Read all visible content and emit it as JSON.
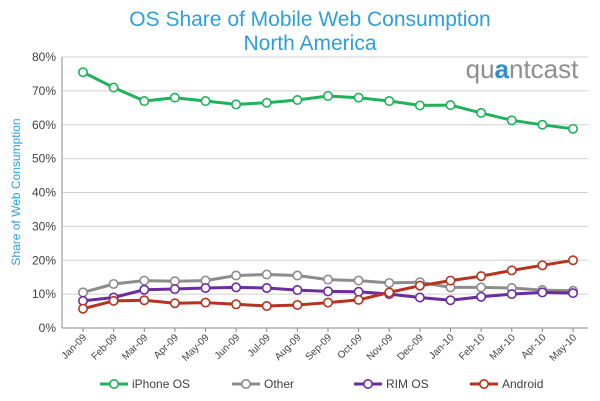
{
  "chart_data": {
    "type": "line",
    "title": "OS Share of Mobile Web Consumption",
    "subtitle": "North America",
    "xlabel": "",
    "ylabel": "Share of Web Consumption",
    "ylim": [
      0,
      80
    ],
    "y_ticks": [
      0,
      10,
      20,
      30,
      40,
      50,
      60,
      70,
      80
    ],
    "y_tick_labels": [
      "0%",
      "10%",
      "20%",
      "30%",
      "40%",
      "50%",
      "60%",
      "70%",
      "80%"
    ],
    "grid": true,
    "legend_position": "bottom",
    "watermark": "quantcast",
    "categories": [
      "Jan-09",
      "Feb-09",
      "Mar-09",
      "Apr-09",
      "May-09",
      "Jun-09",
      "Jul-09",
      "Aug-09",
      "Sep-09",
      "Oct-09",
      "Nov-09",
      "Dec-09",
      "Jan-10",
      "Feb-10",
      "Mar-10",
      "Apr-10",
      "May-10"
    ],
    "series": [
      {
        "name": "iPhone OS",
        "color": "#1FB25A",
        "values": [
          75.5,
          71,
          67,
          68,
          67,
          66,
          66.5,
          67.3,
          68.5,
          68,
          67,
          65.7,
          65.8,
          63.5,
          61.3,
          60,
          58.8
        ]
      },
      {
        "name": "Other",
        "color": "#8C8C8C",
        "values": [
          10.5,
          13,
          14,
          13.8,
          14,
          15.5,
          15.8,
          15.5,
          14.3,
          14,
          13.3,
          13.5,
          12,
          12,
          11.8,
          11.2,
          11
        ]
      },
      {
        "name": "RIM OS",
        "color": "#6A2CA0",
        "values": [
          8,
          9,
          11.3,
          11.5,
          11.8,
          12,
          11.8,
          11.2,
          10.8,
          10.7,
          10,
          9,
          8.2,
          9.2,
          10,
          10.5,
          10.3
        ]
      },
      {
        "name": "Android",
        "color": "#B5331F",
        "values": [
          5.7,
          8,
          8.2,
          7.3,
          7.5,
          7,
          6.5,
          6.8,
          7.5,
          8.3,
          10.5,
          12.5,
          14,
          15.3,
          17,
          18.5,
          20
        ]
      }
    ]
  },
  "colors": {
    "title": "#2E9FD8",
    "ylabel": "#2E9FD8",
    "watermark_gray": "#8E8E8E",
    "watermark_accent": "#2E8FD0",
    "axis_text": "#404040",
    "grid": "#D0D0D0"
  }
}
